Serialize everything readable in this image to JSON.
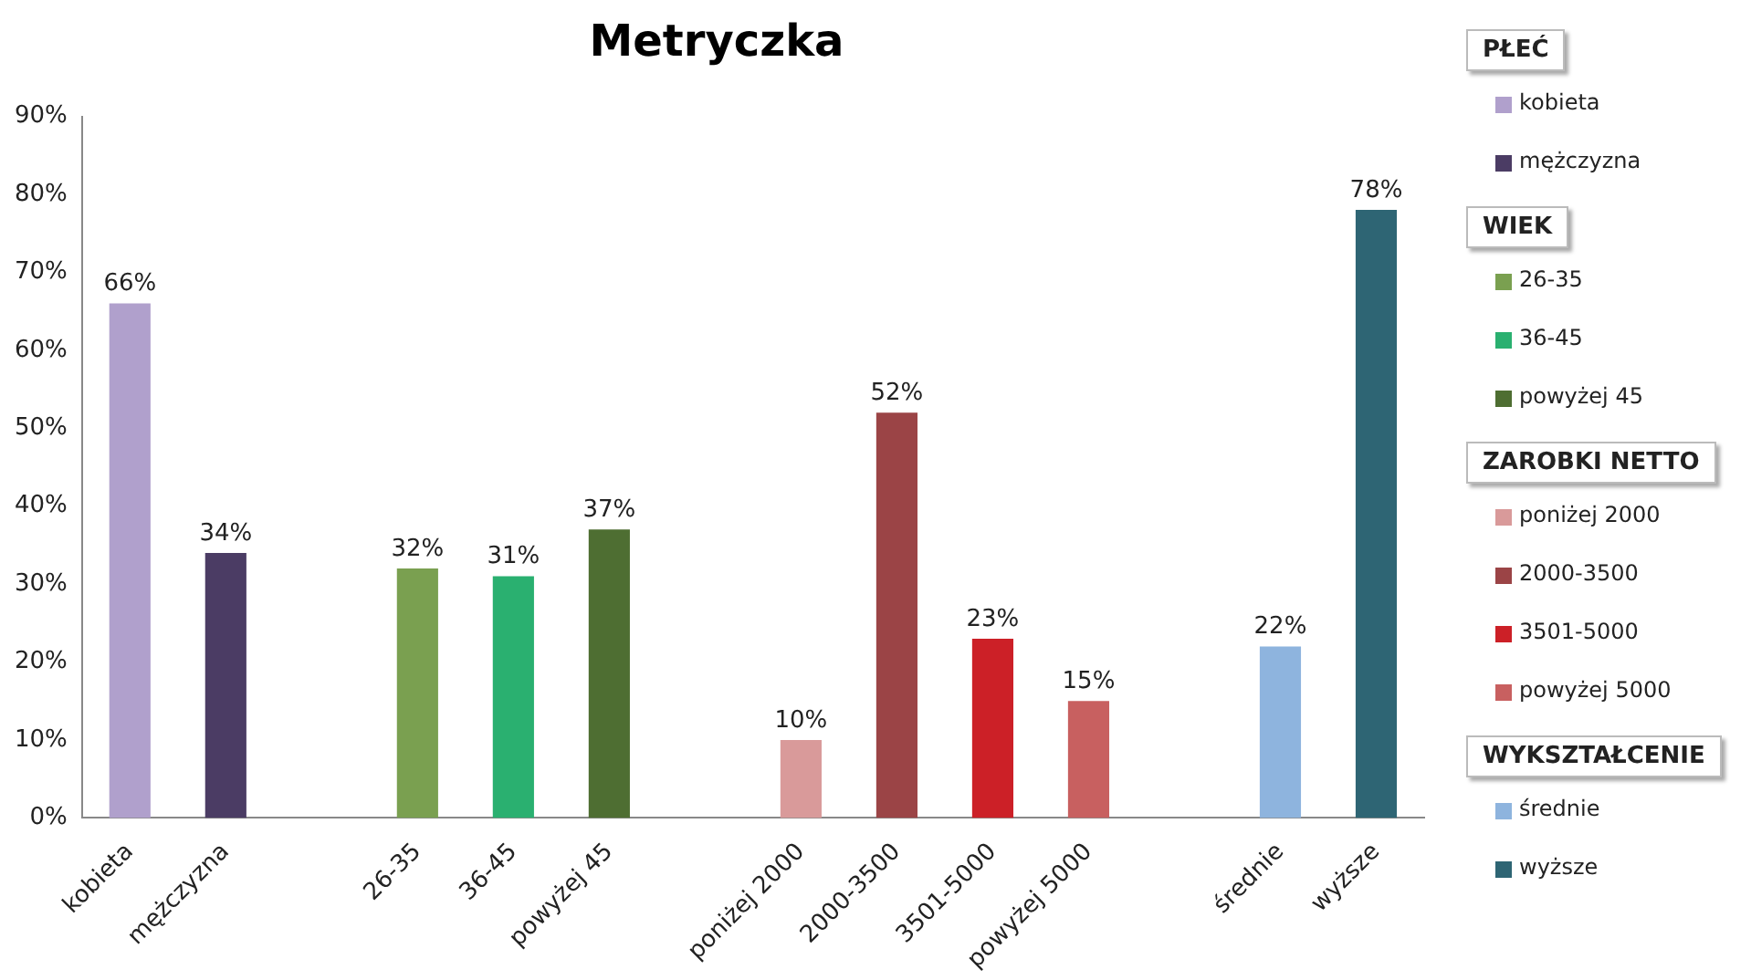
{
  "chart_data": {
    "type": "bar",
    "title": "Metryczka",
    "categories": [
      "kobieta",
      "mężczyzna",
      null,
      "26-35",
      "36-45",
      "powyżej 45",
      null,
      "poniżej 2000",
      "2000-3500",
      "3501-5000",
      "powyżej 5000",
      null,
      "średnie",
      "wyższe"
    ],
    "series": [
      {
        "name": "kobieta",
        "color": "#b0a0cc",
        "values": [
          66,
          null,
          null,
          null,
          null,
          null,
          null,
          null,
          null,
          null,
          null,
          null,
          null,
          null
        ],
        "value_labels": [
          "66%",
          null,
          null,
          null,
          null,
          null,
          null,
          null,
          null,
          null,
          null,
          null,
          null,
          null
        ]
      },
      {
        "name": "mężczyzna",
        "color": "#4b3c64",
        "values": [
          null,
          34,
          null,
          null,
          null,
          null,
          null,
          null,
          null,
          null,
          null,
          null,
          null,
          null
        ],
        "value_labels": [
          null,
          "34%",
          null,
          null,
          null,
          null,
          null,
          null,
          null,
          null,
          null,
          null,
          null,
          null
        ]
      },
      {
        "name": "26-35",
        "color": "#7aa050",
        "values": [
          null,
          null,
          null,
          32,
          null,
          null,
          null,
          null,
          null,
          null,
          null,
          null,
          null,
          null
        ],
        "value_labels": [
          null,
          null,
          null,
          "32%",
          null,
          null,
          null,
          null,
          null,
          null,
          null,
          null,
          null,
          null
        ]
      },
      {
        "name": "36-45",
        "color": "#2ab070",
        "values": [
          null,
          null,
          null,
          null,
          31,
          null,
          null,
          null,
          null,
          null,
          null,
          null,
          null,
          null
        ],
        "value_labels": [
          null,
          null,
          null,
          null,
          "31%",
          null,
          null,
          null,
          null,
          null,
          null,
          null,
          null,
          null
        ]
      },
      {
        "name": "powyżej 45",
        "color": "#4e6e32",
        "values": [
          null,
          null,
          null,
          null,
          null,
          37,
          null,
          null,
          null,
          null,
          null,
          null,
          null,
          null
        ],
        "value_labels": [
          null,
          null,
          null,
          null,
          null,
          "37%",
          null,
          null,
          null,
          null,
          null,
          null,
          null,
          null
        ]
      },
      {
        "name": "poniżej 2000",
        "color": "#d99a9a",
        "values": [
          null,
          null,
          null,
          null,
          null,
          null,
          null,
          10,
          null,
          null,
          null,
          null,
          null,
          null
        ],
        "value_labels": [
          null,
          null,
          null,
          null,
          null,
          null,
          null,
          "10%",
          null,
          null,
          null,
          null,
          null,
          null
        ]
      },
      {
        "name": "2000-3500",
        "color": "#9b4446",
        "values": [
          null,
          null,
          null,
          null,
          null,
          null,
          null,
          null,
          52,
          null,
          null,
          null,
          null,
          null
        ],
        "value_labels": [
          null,
          null,
          null,
          null,
          null,
          null,
          null,
          null,
          "52%",
          null,
          null,
          null,
          null,
          null
        ]
      },
      {
        "name": "3501-5000",
        "color": "#cc2027",
        "values": [
          null,
          null,
          null,
          null,
          null,
          null,
          null,
          null,
          null,
          23,
          null,
          null,
          null,
          null
        ],
        "value_labels": [
          null,
          null,
          null,
          null,
          null,
          null,
          null,
          null,
          null,
          "23%",
          null,
          null,
          null,
          null
        ]
      },
      {
        "name": "powyżej 5000",
        "color": "#c86060",
        "values": [
          null,
          null,
          null,
          null,
          null,
          null,
          null,
          null,
          null,
          null,
          15,
          null,
          null,
          null
        ],
        "value_labels": [
          null,
          null,
          null,
          null,
          null,
          null,
          null,
          null,
          null,
          null,
          "15%",
          null,
          null,
          null
        ]
      },
      {
        "name": "średnie",
        "color": "#8eb4de",
        "values": [
          null,
          null,
          null,
          null,
          null,
          null,
          null,
          null,
          null,
          null,
          null,
          null,
          22,
          null
        ],
        "value_labels": [
          null,
          null,
          null,
          null,
          null,
          null,
          null,
          null,
          null,
          null,
          null,
          null,
          "22%",
          null
        ]
      },
      {
        "name": "wyższe",
        "color": "#2e6574",
        "values": [
          null,
          null,
          null,
          null,
          null,
          null,
          null,
          null,
          null,
          null,
          null,
          null,
          null,
          78
        ],
        "value_labels": [
          null,
          null,
          null,
          null,
          null,
          null,
          null,
          null,
          null,
          null,
          null,
          null,
          null,
          "78%"
        ]
      }
    ],
    "ylim": [
      0,
      90
    ],
    "yticks": [
      {
        "value": 0,
        "label": "0%"
      },
      {
        "value": 10,
        "label": "10%"
      },
      {
        "value": 20,
        "label": "20%"
      },
      {
        "value": 30,
        "label": "30%"
      },
      {
        "value": 40,
        "label": "40%"
      },
      {
        "value": 50,
        "label": "50%"
      },
      {
        "value": 60,
        "label": "60%"
      },
      {
        "value": 70,
        "label": "70%"
      },
      {
        "value": 80,
        "label": "80%"
      },
      {
        "value": 90,
        "label": "90%"
      }
    ],
    "grid": false,
    "legend": "right",
    "annotations": [
      "PŁEĆ",
      "WIEK",
      "ZAROBKI NETTO",
      "WYKSZTAŁCENIE"
    ]
  }
}
